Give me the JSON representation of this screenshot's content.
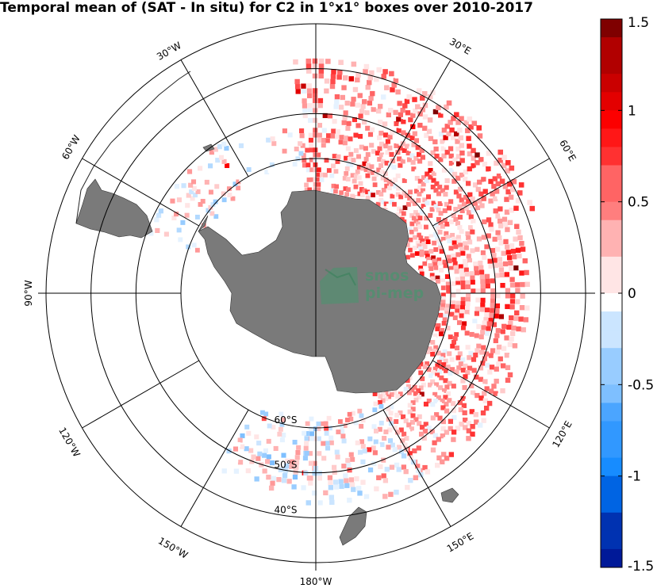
{
  "title": "Temporal mean of (SAT - In situ) for C2 in 1°x1° boxes over 2010-2017",
  "logo": {
    "line1": "smos",
    "line2": "pi-mep"
  },
  "longitude_labels": [
    {
      "text": "30°W",
      "lon": -30
    },
    {
      "text": "30°E",
      "lon": 30
    },
    {
      "text": "60°W",
      "lon": -60
    },
    {
      "text": "60°E",
      "lon": 60
    },
    {
      "text": "90°W",
      "lon": -90
    },
    {
      "text": "120°W",
      "lon": -120
    },
    {
      "text": "120°E",
      "lon": 120
    },
    {
      "text": "150°W",
      "lon": -150
    },
    {
      "text": "150°E",
      "lon": 150
    },
    {
      "text": "180°W",
      "lon": 180
    }
  ],
  "latitude_labels": [
    {
      "text": "60°S",
      "lat": -60
    },
    {
      "text": "50°S",
      "lat": -50
    },
    {
      "text": "40°S",
      "lat": -40
    }
  ],
  "colorbar": {
    "min": -1.5,
    "max": 1.5,
    "ticks": [
      {
        "value": 1.5,
        "text": "1.5"
      },
      {
        "value": 1,
        "text": "1"
      },
      {
        "value": 0.5,
        "text": "0.5"
      },
      {
        "value": 0,
        "text": "0"
      },
      {
        "value": -0.5,
        "text": "-0.5"
      },
      {
        "value": -1,
        "text": "-1"
      },
      {
        "value": -1.5,
        "text": "-1.5"
      }
    ]
  },
  "colors": {
    "land": "#7a7a7a",
    "positive_max": "#7f0000",
    "negative_max": "#00007f",
    "zero": "#ffffff"
  }
}
